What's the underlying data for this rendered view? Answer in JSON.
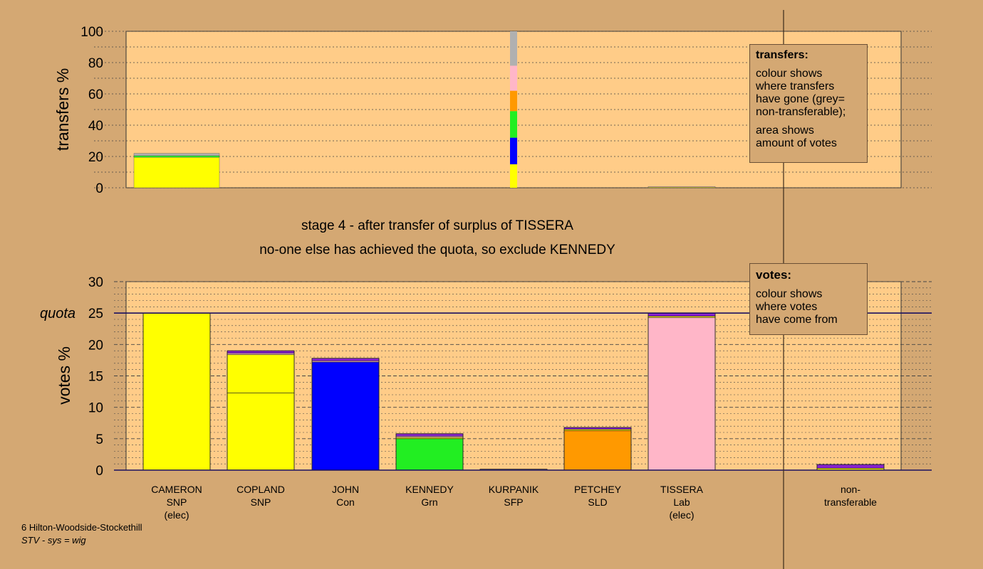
{
  "chart_data": [
    {
      "type": "bar",
      "panel": "transfers",
      "ylabel": "transfers %",
      "ylim": [
        0,
        100
      ],
      "yticks": [
        0,
        20,
        40,
        60,
        80,
        100
      ],
      "bars": [
        {
          "category": "CAMERON",
          "segments": [
            {
              "value": 19.5,
              "color": "#ffff00"
            },
            {
              "value": 1.0,
              "color": "#22ee22"
            },
            {
              "value": 1.5,
              "color": "#b0b0b0"
            }
          ]
        },
        {
          "category": "COPLAND",
          "segments": []
        },
        {
          "category": "JOHN",
          "segments": []
        },
        {
          "category": "KENNEDY",
          "segments": []
        },
        {
          "category": "KURPANIK",
          "segments": []
        },
        {
          "category": "PETCHEY",
          "segments": []
        },
        {
          "category": "TISSERA",
          "segments": [
            {
              "value": 0.5,
              "color": "#ffff00"
            },
            {
              "value": 0.3,
              "color": "#ffb6c8"
            }
          ]
        }
      ],
      "stack": {
        "position": "between KURPANIK and PETCHEY",
        "segments": [
          {
            "value": 15,
            "color": "#ffff00"
          },
          {
            "value": 17,
            "color": "#0000ff"
          },
          {
            "value": 17,
            "color": "#22ee22"
          },
          {
            "value": 13,
            "color": "#ff9900"
          },
          {
            "value": 16,
            "color": "#ffb6c8"
          },
          {
            "value": 22,
            "color": "#b0b0b0"
          }
        ]
      }
    },
    {
      "type": "bar",
      "panel": "votes",
      "ylabel": "votes %",
      "ylim": [
        0,
        30
      ],
      "yticks": [
        0,
        5,
        10,
        15,
        20,
        25,
        30
      ],
      "quota": 25,
      "quota_label": "quota",
      "bars": [
        {
          "category": "CAMERON",
          "party": "SNP",
          "status": "(elec)",
          "segments": [
            {
              "value": 25.0,
              "color": "#ffff00"
            }
          ]
        },
        {
          "category": "COPLAND",
          "party": "SNP",
          "status": "",
          "segments": [
            {
              "value": 12.3,
              "color": "#ffff00"
            },
            {
              "value": 6.1,
              "color": "#ffff00"
            },
            {
              "value": 0.2,
              "color": "#ffb6c8"
            },
            {
              "value": 0.4,
              "color": "#8822cc"
            }
          ]
        },
        {
          "category": "JOHN",
          "party": "Con",
          "status": "",
          "segments": [
            {
              "value": 17.2,
              "color": "#0000ff"
            },
            {
              "value": 0.2,
              "color": "#ffb6c8"
            },
            {
              "value": 0.4,
              "color": "#8822cc"
            }
          ]
        },
        {
          "category": "KENNEDY",
          "party": "Grn",
          "status": "",
          "segments": [
            {
              "value": 5.0,
              "color": "#22ee22"
            },
            {
              "value": 0.2,
              "color": "#ffff00"
            },
            {
              "value": 0.2,
              "color": "#ffb6c8"
            },
            {
              "value": 0.4,
              "color": "#8822cc"
            }
          ]
        },
        {
          "category": "KURPANIK",
          "party": "SFP",
          "status": "",
          "segments": [
            {
              "value": 0.15,
              "color": "#888888"
            }
          ]
        },
        {
          "category": "PETCHEY",
          "party": "SLD",
          "status": "",
          "segments": [
            {
              "value": 6.3,
              "color": "#ff9900"
            },
            {
              "value": 0.2,
              "color": "#ffff00"
            },
            {
              "value": 0.3,
              "color": "#8822cc"
            }
          ]
        },
        {
          "category": "TISSERA",
          "party": "Lab",
          "status": "(elec)",
          "segments": [
            {
              "value": 24.3,
              "color": "#ffb6c8"
            },
            {
              "value": 0.2,
              "color": "#ffff00"
            },
            {
              "value": 0.5,
              "color": "#8822cc"
            }
          ]
        },
        {
          "category": "non-\ntransferable",
          "party": "",
          "status": "",
          "segments": [
            {
              "value": 0.3,
              "color": "#ffff00"
            },
            {
              "value": 0.6,
              "color": "#8822cc"
            }
          ]
        }
      ]
    }
  ],
  "stage_title": "stage 4 - after transfer of surplus of TISSERA",
  "stage_subtitle": "no-one else has achieved the quota, so exclude KENNEDY",
  "transfers_box": {
    "title": "transfers:",
    "lines1": [
      "colour shows",
      "where transfers",
      "have gone (grey=",
      "non-transferable);"
    ],
    "lines2": [
      "area shows",
      "amount of votes"
    ]
  },
  "votes_box": {
    "title": "votes:",
    "lines": [
      "colour shows",
      "where votes",
      "have come from"
    ]
  },
  "footer": {
    "ward": "6 Hilton-Woodside-Stockethill",
    "system": "STV - sys = wig"
  },
  "colors": {
    "background": "#d4a873",
    "plot": "#ffcc88"
  }
}
